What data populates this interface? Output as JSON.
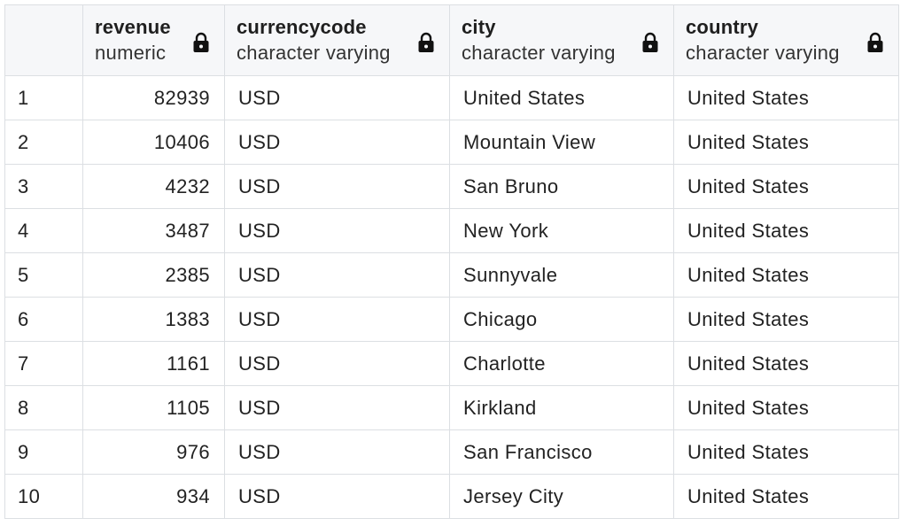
{
  "grid": {
    "columns": [
      {
        "name": "revenue",
        "type": "numeric",
        "icon": "lock-icon"
      },
      {
        "name": "currencycode",
        "type": "character varying",
        "icon": "lock-icon"
      },
      {
        "name": "city",
        "type": "character varying",
        "icon": "lock-icon"
      },
      {
        "name": "country",
        "type": "character varying",
        "icon": "lock-icon"
      }
    ],
    "rows": [
      {
        "num": "1",
        "revenue": "82939",
        "currencycode": "USD",
        "city": "United States",
        "country": "United States"
      },
      {
        "num": "2",
        "revenue": "10406",
        "currencycode": "USD",
        "city": "Mountain View",
        "country": "United States"
      },
      {
        "num": "3",
        "revenue": "4232",
        "currencycode": "USD",
        "city": "San Bruno",
        "country": "United States"
      },
      {
        "num": "4",
        "revenue": "3487",
        "currencycode": "USD",
        "city": "New York",
        "country": "United States"
      },
      {
        "num": "5",
        "revenue": "2385",
        "currencycode": "USD",
        "city": "Sunnyvale",
        "country": "United States"
      },
      {
        "num": "6",
        "revenue": "1383",
        "currencycode": "USD",
        "city": "Chicago",
        "country": "United States"
      },
      {
        "num": "7",
        "revenue": "1161",
        "currencycode": "USD",
        "city": "Charlotte",
        "country": "United States"
      },
      {
        "num": "8",
        "revenue": "1105",
        "currencycode": "USD",
        "city": "Kirkland",
        "country": "United States"
      },
      {
        "num": "9",
        "revenue": "976",
        "currencycode": "USD",
        "city": "San Francisco",
        "country": "United States"
      },
      {
        "num": "10",
        "revenue": "934",
        "currencycode": "USD",
        "city": "Jersey City",
        "country": "United States"
      }
    ]
  },
  "colors": {
    "header_bg": "#f6f7f9",
    "border": "#dcdfe3",
    "text": "#222222"
  }
}
